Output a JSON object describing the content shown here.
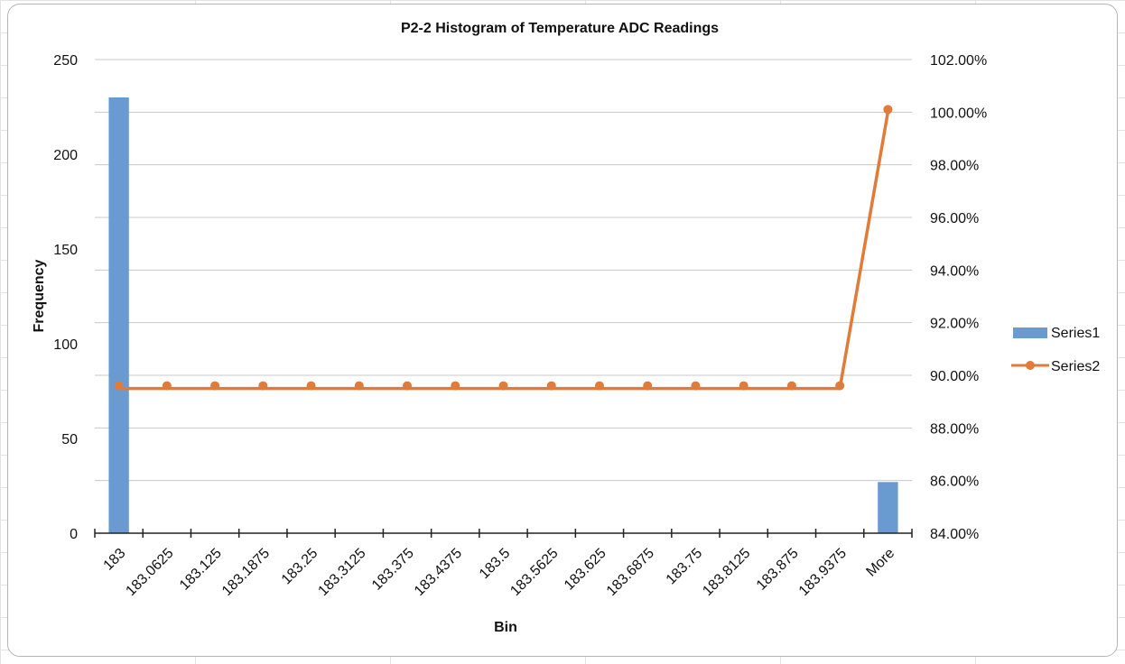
{
  "chart_data": {
    "type": "bar",
    "title": "P2-2 Histogram of Temperature ADC Readings",
    "xlabel": "Bin",
    "ylabel": "Frequency",
    "categories": [
      "183",
      "183.0625",
      "183.125",
      "183.1875",
      "183.25",
      "183.3125",
      "183.375",
      "183.4375",
      "183.5",
      "183.5625",
      "183.625",
      "183.6875",
      "183.75",
      "183.8125",
      "183.875",
      "183.9375",
      "More"
    ],
    "series": [
      {
        "name": "Series1",
        "type": "bar",
        "axis": "left",
        "color": "#6a9bd0",
        "values": [
          230,
          0,
          0,
          0,
          0,
          0,
          0,
          0,
          0,
          0,
          0,
          0,
          0,
          0,
          0,
          0,
          27
        ]
      },
      {
        "name": "Series2",
        "type": "line",
        "axis": "right",
        "color": "#e07b39",
        "values": [
          0.895,
          0.895,
          0.895,
          0.895,
          0.895,
          0.895,
          0.895,
          0.895,
          0.895,
          0.895,
          0.895,
          0.895,
          0.895,
          0.895,
          0.895,
          0.895,
          1.0
        ]
      }
    ],
    "ylim": [
      0,
      250
    ],
    "yticks": [
      "0",
      "50",
      "100",
      "150",
      "200",
      "250"
    ],
    "y2lim": [
      0.84,
      1.02
    ],
    "y2ticks": [
      "84.00%",
      "86.00%",
      "88.00%",
      "90.00%",
      "92.00%",
      "94.00%",
      "96.00%",
      "98.00%",
      "100.00%",
      "102.00%"
    ],
    "grid": true,
    "legend": "right"
  }
}
